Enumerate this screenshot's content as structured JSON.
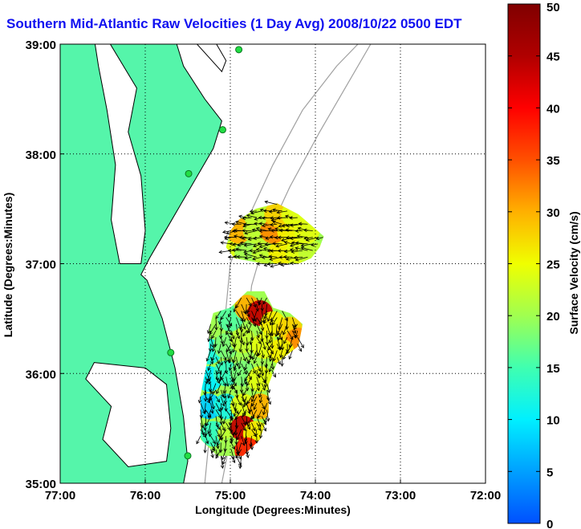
{
  "chart_data": {
    "type": "map",
    "title": "Southern Mid-Atlantic Raw Velocities (1 Day Avg) 2008/10/22 0500 EDT",
    "xlabel": "Longitude (Degrees:Minutes)",
    "ylabel": "Latitude (Degrees:Minutes)",
    "x_ticks": [
      {
        "value": -77,
        "label": "77:00"
      },
      {
        "value": -76,
        "label": "76:00"
      },
      {
        "value": -75,
        "label": "75:00"
      },
      {
        "value": -74,
        "label": "74:00"
      },
      {
        "value": -73,
        "label": "73:00"
      },
      {
        "value": -72,
        "label": "72:00"
      }
    ],
    "y_ticks": [
      {
        "value": 39,
        "label": "39:00"
      },
      {
        "value": 38,
        "label": "38:00"
      },
      {
        "value": 37,
        "label": "37:00"
      },
      {
        "value": 36,
        "label": "36:00"
      },
      {
        "value": 35,
        "label": "35:00"
      }
    ],
    "xlim": [
      -77,
      -72
    ],
    "ylim": [
      35,
      39
    ],
    "grid": true,
    "colorbar": {
      "label": "Surface Velocity (cm/s)",
      "range": [
        0,
        50
      ],
      "ticks": [
        0,
        5,
        10,
        15,
        20,
        25,
        30,
        35,
        40,
        45,
        50
      ],
      "colors": [
        "#0050ff",
        "#00a0ff",
        "#00f0ff",
        "#40ffb0",
        "#a0ff50",
        "#f0ff00",
        "#ffb000",
        "#ff5000",
        "#ff0000",
        "#b00000",
        "#800000"
      ]
    },
    "colors": {
      "land": "#55f5aa",
      "water": "#ffffff",
      "coastline": "#000000",
      "bathymetry": "#a0a0a0",
      "station": "#22dd44",
      "title": "#1010f0"
    },
    "stations": [
      {
        "lon": -74.9,
        "lat": 38.95
      },
      {
        "lon": -75.09,
        "lat": 38.22
      },
      {
        "lon": -75.49,
        "lat": 37.82
      },
      {
        "lon": -75.7,
        "lat": 36.19
      },
      {
        "lon": -75.5,
        "lat": 35.25
      }
    ],
    "regions": [
      {
        "name": "north",
        "polygon": [
          [
            -75.0,
            37.3
          ],
          [
            -74.9,
            37.4
          ],
          [
            -74.7,
            37.5
          ],
          [
            -74.45,
            37.55
          ],
          [
            -74.2,
            37.45
          ],
          [
            -74.05,
            37.35
          ],
          [
            -73.9,
            37.25
          ],
          [
            -73.95,
            37.15
          ],
          [
            -74.05,
            37.05
          ],
          [
            -74.2,
            37.0
          ],
          [
            -74.6,
            37.0
          ],
          [
            -74.95,
            37.05
          ],
          [
            -75.05,
            37.15
          ]
        ],
        "cells": [
          {
            "lon": -74.95,
            "lat": 37.1,
            "v": 24
          },
          {
            "lon": -74.8,
            "lat": 37.1,
            "v": 20
          },
          {
            "lon": -74.6,
            "lat": 37.1,
            "v": 22
          },
          {
            "lon": -74.4,
            "lat": 37.1,
            "v": 26
          },
          {
            "lon": -74.2,
            "lat": 37.1,
            "v": 24
          },
          {
            "lon": -74.05,
            "lat": 37.1,
            "v": 22
          },
          {
            "lon": -74.9,
            "lat": 37.3,
            "v": 30
          },
          {
            "lon": -74.7,
            "lat": 37.3,
            "v": 22
          },
          {
            "lon": -74.5,
            "lat": 37.3,
            "v": 32
          },
          {
            "lon": -74.3,
            "lat": 37.3,
            "v": 26
          },
          {
            "lon": -74.1,
            "lat": 37.3,
            "v": 24
          },
          {
            "lon": -74.7,
            "lat": 37.45,
            "v": 22
          },
          {
            "lon": -74.45,
            "lat": 37.45,
            "v": 28
          },
          {
            "lon": -74.25,
            "lat": 37.45,
            "v": 24
          }
        ]
      },
      {
        "name": "south",
        "polygon": [
          [
            -75.2,
            36.55
          ],
          [
            -75.0,
            36.6
          ],
          [
            -74.8,
            36.75
          ],
          [
            -74.6,
            36.75
          ],
          [
            -74.5,
            36.6
          ],
          [
            -74.3,
            36.55
          ],
          [
            -74.15,
            36.45
          ],
          [
            -74.2,
            36.25
          ],
          [
            -74.45,
            36.1
          ],
          [
            -74.55,
            35.9
          ],
          [
            -74.55,
            35.65
          ],
          [
            -74.65,
            35.4
          ],
          [
            -74.85,
            35.25
          ],
          [
            -75.15,
            35.25
          ],
          [
            -75.35,
            35.4
          ],
          [
            -75.35,
            35.8
          ],
          [
            -75.25,
            36.2
          ],
          [
            -75.25,
            36.4
          ]
        ],
        "cells": [
          {
            "lon": -75.2,
            "lat": 36.45,
            "v": 20
          },
          {
            "lon": -75.0,
            "lat": 36.5,
            "v": 16
          },
          {
            "lon": -74.8,
            "lat": 36.6,
            "v": 30
          },
          {
            "lon": -74.65,
            "lat": 36.55,
            "v": 44
          },
          {
            "lon": -74.5,
            "lat": 36.45,
            "v": 26
          },
          {
            "lon": -74.3,
            "lat": 36.4,
            "v": 28
          },
          {
            "lon": -74.2,
            "lat": 36.3,
            "v": 32
          },
          {
            "lon": -75.25,
            "lat": 36.2,
            "v": 12
          },
          {
            "lon": -75.05,
            "lat": 36.25,
            "v": 18
          },
          {
            "lon": -74.85,
            "lat": 36.3,
            "v": 22
          },
          {
            "lon": -74.6,
            "lat": 36.25,
            "v": 24
          },
          {
            "lon": -74.4,
            "lat": 36.2,
            "v": 26
          },
          {
            "lon": -75.25,
            "lat": 35.95,
            "v": 10
          },
          {
            "lon": -75.05,
            "lat": 36.0,
            "v": 14
          },
          {
            "lon": -74.85,
            "lat": 36.0,
            "v": 18
          },
          {
            "lon": -74.65,
            "lat": 35.95,
            "v": 24
          },
          {
            "lon": -75.25,
            "lat": 35.7,
            "v": 8
          },
          {
            "lon": -75.05,
            "lat": 35.7,
            "v": 12
          },
          {
            "lon": -74.85,
            "lat": 35.7,
            "v": 24
          },
          {
            "lon": -74.65,
            "lat": 35.7,
            "v": 30
          },
          {
            "lon": -75.2,
            "lat": 35.45,
            "v": 14
          },
          {
            "lon": -75.0,
            "lat": 35.45,
            "v": 22
          },
          {
            "lon": -74.85,
            "lat": 35.5,
            "v": 44
          },
          {
            "lon": -74.7,
            "lat": 35.45,
            "v": 26
          },
          {
            "lon": -75.0,
            "lat": 35.3,
            "v": 20
          },
          {
            "lon": -74.8,
            "lat": 35.3,
            "v": 38
          }
        ]
      }
    ]
  }
}
